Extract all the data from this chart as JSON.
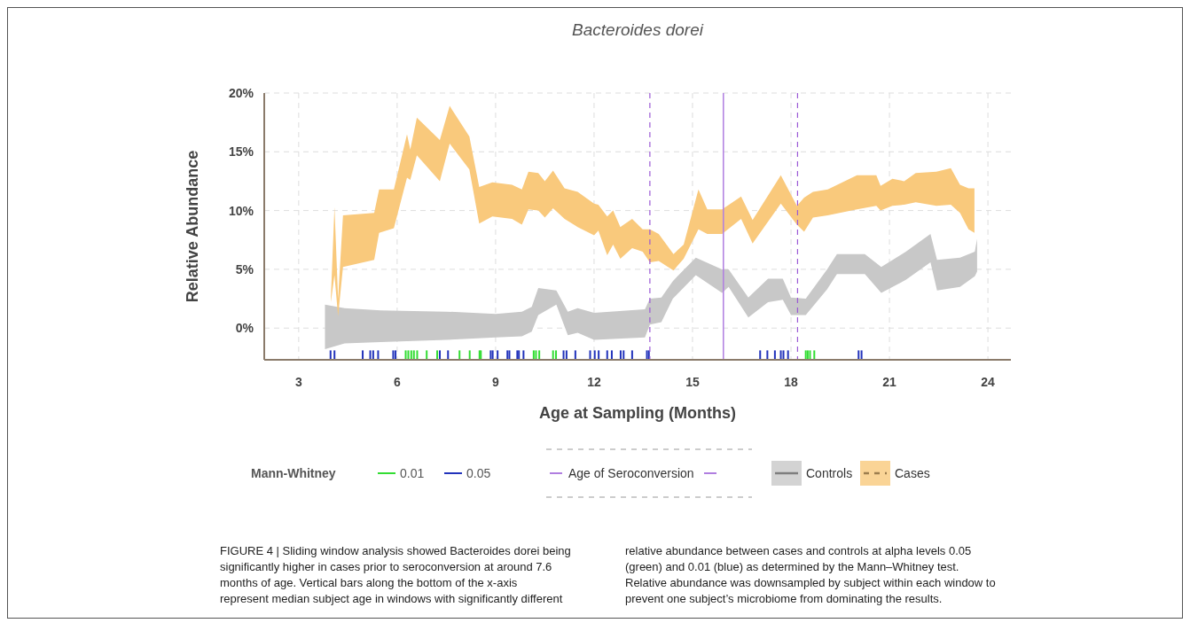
{
  "chart_data": {
    "type": "area",
    "title": "Bacteroides dorei",
    "xlabel": "Age at Sampling (Months)",
    "ylabel": "Relative Abundance",
    "xlim": [
      1.95,
      24.7
    ],
    "ylim": [
      -2.7,
      20
    ],
    "xticks": [
      3,
      6,
      9,
      12,
      15,
      18,
      21,
      24
    ],
    "yticks": [
      {
        "value": 0,
        "label": "0%"
      },
      {
        "value": 5,
        "label": "5%"
      },
      {
        "value": 10,
        "label": "10%"
      },
      {
        "value": 15,
        "label": "15%"
      },
      {
        "value": 20,
        "label": "20%"
      }
    ],
    "grid": true,
    "legend": "bottom",
    "legend_title": "Mann-Whitney",
    "ref_lines": [
      {
        "axis": "x",
        "value": 13.7,
        "color": "#9b59d6",
        "line_style": "dashed"
      },
      {
        "axis": "x",
        "value": 15.94,
        "label": "Age of Seroconversion",
        "color": "#b07ee0",
        "line_style": "solid"
      },
      {
        "axis": "x",
        "value": 18.2,
        "color": "#9b59d6",
        "line_style": "dashed"
      }
    ],
    "series": [
      {
        "name": "0.01",
        "type": "bar",
        "color": "#33dd33",
        "x": [
          6.26,
          6.34,
          6.43,
          6.51,
          6.61,
          6.9,
          7.22,
          7.9,
          8.21,
          8.51,
          8.55,
          10.16,
          10.23,
          10.33,
          10.75,
          10.84,
          18.45,
          18.51,
          18.58,
          18.71
        ],
        "values": [
          0.8,
          0.8,
          0.8,
          0.8,
          0.8,
          0.8,
          0.8,
          0.8,
          0.8,
          0.8,
          0.8,
          0.8,
          0.8,
          0.8,
          0.8,
          0.8,
          0.8,
          0.8,
          0.8,
          0.8
        ],
        "base": [
          -2.7,
          -2.7,
          -2.7,
          -2.7,
          -2.7,
          -2.7,
          -2.7,
          -2.7,
          -2.7,
          -2.7,
          -2.7,
          -2.7,
          -2.7,
          -2.7,
          -2.7,
          -2.7,
          -2.7,
          -2.7,
          -2.7,
          -2.7
        ]
      },
      {
        "name": "0.05",
        "type": "bar",
        "color": "#2233bb",
        "x": [
          3.97,
          4.09,
          4.95,
          5.18,
          5.27,
          5.42,
          5.88,
          5.95,
          7.3,
          7.55,
          8.85,
          8.91,
          9.06,
          9.36,
          9.42,
          9.66,
          9.71,
          9.85,
          11.07,
          11.16,
          11.43,
          11.88,
          12.02,
          12.14,
          12.4,
          12.54,
          12.81,
          12.9,
          13.16,
          13.61,
          13.67,
          17.06,
          17.28,
          17.51,
          17.69,
          17.77,
          17.91,
          20.06,
          20.15
        ],
        "values": [
          0.8,
          0.8,
          0.8,
          0.8,
          0.8,
          0.8,
          0.8,
          0.8,
          0.8,
          0.8,
          0.8,
          0.8,
          0.8,
          0.8,
          0.8,
          0.8,
          0.8,
          0.8,
          0.8,
          0.8,
          0.8,
          0.8,
          0.8,
          0.8,
          0.8,
          0.8,
          0.8,
          0.8,
          0.8,
          0.8,
          0.8,
          0.8,
          0.8,
          0.8,
          0.8,
          0.8,
          0.8,
          0.8,
          0.8
        ],
        "base": [
          -2.7,
          -2.7,
          -2.7,
          -2.7,
          -2.7,
          -2.7,
          -2.7,
          -2.7,
          -2.7,
          -2.7,
          -2.7,
          -2.7,
          -2.7,
          -2.7,
          -2.7,
          -2.7,
          -2.7,
          -2.7,
          -2.7,
          -2.7,
          -2.7,
          -2.7,
          -2.7,
          -2.7,
          -2.7,
          -2.7,
          -2.7,
          -2.7,
          -2.7,
          -2.7,
          -2.7,
          -2.7,
          -2.7,
          -2.7,
          -2.7,
          -2.7,
          -2.7,
          -2.7,
          -2.7
        ]
      },
      {
        "name": "Controls",
        "color": "#c8c8c8",
        "values": [
          null,
          null,
          null,
          null,
          null,
          null,
          null,
          null,
          null,
          null,
          null,
          null,
          null,
          null,
          null,
          null,
          null,
          null,
          null,
          null,
          null,
          null,
          null,
          null,
          null,
          null,
          null,
          null,
          null,
          null,
          null,
          null,
          null,
          null
        ],
        "x": [
          3.8,
          4.4,
          5.5,
          7.5,
          9.0,
          9.8,
          10.1,
          10.3,
          10.85,
          11.2,
          11.5,
          12.0,
          13.55,
          13.7,
          14.05,
          14.4,
          15.1,
          15.9,
          16.1,
          16.7,
          17.3,
          17.75,
          18.0,
          18.45,
          19.1,
          19.4,
          20.25,
          20.75,
          21.5,
          22.25,
          22.45,
          23.15,
          23.6,
          23.67
        ],
        "lower": [
          -1.8,
          -1.3,
          -1.2,
          -1.0,
          -0.8,
          -0.7,
          -0.3,
          1.1,
          2.0,
          -0.6,
          -0.4,
          -1.0,
          -0.8,
          0.3,
          0.5,
          2.5,
          4.5,
          3.0,
          3.5,
          0.9,
          2.2,
          2.4,
          1.1,
          1.1,
          3.3,
          4.6,
          4.6,
          3.0,
          4.1,
          5.6,
          3.2,
          3.5,
          4.4,
          4.8
        ],
        "upper": [
          2.0,
          1.7,
          1.5,
          1.4,
          1.2,
          1.4,
          1.8,
          3.4,
          3.2,
          1.4,
          1.7,
          1.3,
          1.6,
          2.5,
          2.6,
          4.0,
          6.0,
          5.0,
          5.0,
          2.6,
          4.2,
          4.2,
          2.6,
          2.5,
          5.0,
          6.3,
          6.3,
          5.2,
          6.5,
          8.0,
          5.8,
          6.0,
          6.5,
          7.6
        ]
      },
      {
        "name": "Cases",
        "color": "#f9c97c",
        "values": [
          null,
          null,
          null,
          null,
          null,
          null,
          null,
          null,
          null,
          null,
          null,
          null,
          null,
          null,
          null,
          null,
          null,
          null,
          null,
          null,
          null,
          null,
          null,
          null,
          null,
          null,
          null,
          null,
          null,
          null,
          null,
          null,
          null,
          null,
          null,
          null,
          null,
          null,
          null,
          null,
          null,
          null,
          null,
          null,
          null,
          null,
          null,
          null,
          null,
          null,
          null,
          null,
          null,
          null,
          null
        ],
        "x": [
          3.98,
          4.09,
          4.2,
          4.35,
          5.3,
          5.45,
          5.9,
          6.3,
          6.4,
          6.6,
          7.3,
          7.6,
          8.2,
          8.5,
          8.9,
          9.5,
          9.8,
          10.0,
          10.3,
          10.5,
          10.75,
          11.1,
          11.5,
          12.0,
          12.13,
          12.4,
          12.58,
          12.8,
          13.16,
          13.48,
          13.7,
          13.97,
          14.42,
          14.73,
          15.18,
          15.45,
          15.9,
          16.48,
          16.83,
          17.69,
          18.18,
          18.4,
          18.67,
          19.12,
          20.01,
          20.6,
          20.73,
          21.09,
          21.45,
          21.8,
          22.43,
          22.87,
          23.15,
          23.41,
          23.59
        ],
        "lower": [
          2.2,
          4.5,
          1.0,
          5.2,
          5.8,
          8.1,
          8.5,
          12.8,
          12.6,
          14.7,
          12.5,
          15.7,
          13.5,
          8.9,
          9.5,
          9.3,
          8.8,
          10.1,
          10.0,
          9.4,
          10.2,
          9.3,
          8.6,
          7.9,
          8.3,
          6.2,
          7.1,
          5.9,
          6.8,
          6.5,
          5.6,
          5.7,
          4.9,
          5.9,
          8.4,
          8.0,
          8.0,
          9.3,
          7.2,
          10.6,
          8.8,
          8.2,
          9.4,
          9.6,
          10.1,
          10.4,
          10.0,
          10.4,
          10.5,
          10.7,
          10.4,
          10.5,
          9.8,
          8.4,
          8.1
        ],
        "upper": [
          2.6,
          10.3,
          2.5,
          9.6,
          9.8,
          11.8,
          11.8,
          16.5,
          15.2,
          17.9,
          16.0,
          18.9,
          16.3,
          12.0,
          12.4,
          12.2,
          11.8,
          13.3,
          13.2,
          12.5,
          13.4,
          11.9,
          11.6,
          10.6,
          10.5,
          9.5,
          10.0,
          8.6,
          9.3,
          8.4,
          8.4,
          8.0,
          6.3,
          7.1,
          11.8,
          10.1,
          10.1,
          11.2,
          9.2,
          13.0,
          10.4,
          11.1,
          11.6,
          11.8,
          13.0,
          13.0,
          12.1,
          12.7,
          12.5,
          13.2,
          13.3,
          13.6,
          12.2,
          11.9,
          11.9
        ]
      }
    ],
    "annotations": [
      "FIGURE 4 | Sliding window analysis showed Bacteroides dorei being significantly higher in cases prior to seroconversion at around 7.6 months of age. Vertical bars along the bottom of the x-axis represent median subject age in windows with significantly different relative abundance between cases and controls at alpha levels 0.05 (green) and 0.01 (blue) as determined by the Mann–Whitney test. Relative abundance was downsampled by subject within each window to prevent one subject’s microbiome from dominating the results."
    ]
  }
}
